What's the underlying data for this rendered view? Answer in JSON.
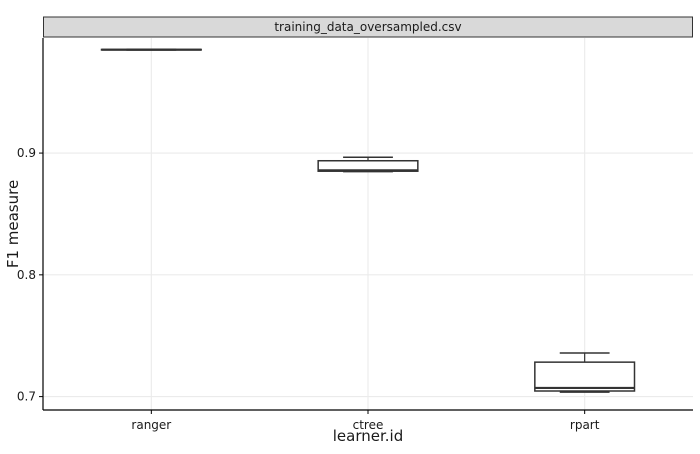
{
  "chart_data": {
    "type": "boxplot",
    "facet_title": "training_data_oversampled.csv",
    "xlabel": "learner.id",
    "ylabel": "F1 measure",
    "ylim": [
      0.689,
      0.9945
    ],
    "yticks": [
      0.7,
      0.8,
      0.9
    ],
    "ytick_labels": [
      "0.7",
      "0.8",
      "0.9"
    ],
    "grid": true,
    "categories": [
      "ranger",
      "ctree",
      "rpart"
    ],
    "boxes": [
      {
        "name": "ranger",
        "min": 0.9846,
        "q1": 0.9848,
        "median": 0.9849,
        "q3": 0.9851,
        "max": 0.9853
      },
      {
        "name": "ctree",
        "min": 0.8848,
        "q1": 0.8851,
        "median": 0.8858,
        "q3": 0.8937,
        "max": 0.8966
      },
      {
        "name": "rpart",
        "min": 0.7037,
        "q1": 0.7046,
        "median": 0.7071,
        "q3": 0.7283,
        "max": 0.7358
      }
    ]
  },
  "colors": {
    "strip_fill": "#d9d9d9",
    "strip_border": "#333333",
    "grid": "#ebebeb",
    "box_stroke": "#333333",
    "axis": "#000000",
    "text": "#1a1a1a"
  }
}
